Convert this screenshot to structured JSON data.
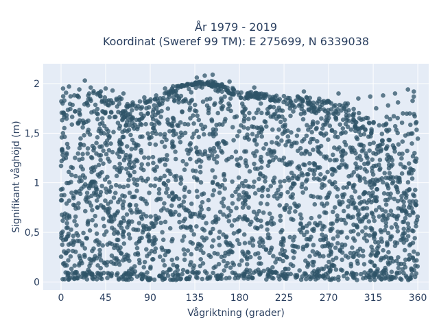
{
  "chart_data": {
    "type": "scatter",
    "title": [
      "År 1979 - 2019",
      "Koordinat (Sweref 99 TM): E 275699, N 6339038"
    ],
    "xlabel": "Vågriktning (grader)",
    "ylabel": "Signifikant våghöjd (m)",
    "xlim": [
      -18,
      371
    ],
    "ylim": [
      -0.08,
      2.2
    ],
    "xticks": [
      0,
      45,
      90,
      135,
      180,
      225,
      270,
      315,
      360
    ],
    "xtick_labels": [
      "0",
      "45",
      "90",
      "135",
      "180",
      "225",
      "270",
      "315",
      "360"
    ],
    "yticks": [
      0,
      0.5,
      1,
      1.5,
      2
    ],
    "ytick_labels": [
      "0",
      "0,5",
      "1",
      "1,5",
      "2"
    ],
    "grid": true,
    "marker_color": "#2f5468",
    "plot_background": "#e5ecf6",
    "upper_envelope": [
      [
        0,
        1.9
      ],
      [
        10,
        1.94
      ],
      [
        20,
        1.96
      ],
      [
        30,
        1.93
      ],
      [
        40,
        1.93
      ],
      [
        50,
        1.88
      ],
      [
        60,
        1.86
      ],
      [
        70,
        1.84
      ],
      [
        80,
        1.82
      ],
      [
        90,
        1.85
      ],
      [
        100,
        1.87
      ],
      [
        110,
        1.97
      ],
      [
        120,
        1.98
      ],
      [
        130,
        2.0
      ],
      [
        140,
        2.02
      ],
      [
        150,
        2.03
      ],
      [
        160,
        2.0
      ],
      [
        170,
        1.97
      ],
      [
        180,
        1.93
      ],
      [
        190,
        1.92
      ],
      [
        200,
        1.9
      ],
      [
        210,
        1.9
      ],
      [
        220,
        1.88
      ],
      [
        230,
        1.88
      ],
      [
        240,
        1.87
      ],
      [
        250,
        1.86
      ],
      [
        260,
        1.85
      ],
      [
        270,
        1.83
      ],
      [
        280,
        1.82
      ],
      [
        290,
        1.8
      ],
      [
        300,
        1.72
      ],
      [
        310,
        1.66
      ],
      [
        320,
        1.6
      ],
      [
        330,
        1.7
      ],
      [
        340,
        1.75
      ],
      [
        350,
        1.85
      ],
      [
        360,
        1.92
      ]
    ],
    "dense_core_upper": [
      [
        0,
        1.55
      ],
      [
        20,
        1.7
      ],
      [
        40,
        1.7
      ],
      [
        60,
        1.6
      ],
      [
        80,
        1.6
      ],
      [
        100,
        1.75
      ],
      [
        120,
        1.95
      ],
      [
        140,
        2.0
      ],
      [
        160,
        1.95
      ],
      [
        180,
        1.85
      ],
      [
        200,
        1.85
      ],
      [
        220,
        1.8
      ],
      [
        240,
        1.75
      ],
      [
        260,
        1.7
      ],
      [
        280,
        1.65
      ],
      [
        300,
        1.5
      ],
      [
        320,
        1.25
      ],
      [
        340,
        1.2
      ],
      [
        360,
        1.25
      ]
    ],
    "outliers": [
      [
        2,
        1.95
      ],
      [
        8,
        1.97
      ],
      [
        24,
        2.03
      ],
      [
        30,
        1.96
      ],
      [
        45,
        1.95
      ],
      [
        52,
        1.93
      ],
      [
        63,
        1.9
      ],
      [
        84,
        1.86
      ],
      [
        96,
        1.88
      ],
      [
        105,
        1.95
      ],
      [
        137,
        2.06
      ],
      [
        145,
        2.08
      ],
      [
        153,
        2.09
      ],
      [
        170,
        2.02
      ],
      [
        195,
        1.96
      ],
      [
        245,
        1.92
      ],
      [
        280,
        1.9
      ],
      [
        300,
        1.85
      ],
      [
        312,
        1.87
      ],
      [
        325,
        1.88
      ],
      [
        337,
        1.9
      ],
      [
        350,
        1.94
      ],
      [
        356,
        1.92
      ],
      [
        340,
        1.81
      ],
      [
        330,
        1.78
      ],
      [
        318,
        1.75
      ],
      [
        345,
        1.7
      ],
      [
        358,
        1.6
      ]
    ],
    "min_value": 0.02
  }
}
